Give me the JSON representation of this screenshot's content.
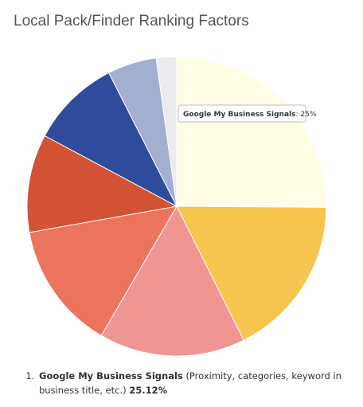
{
  "chart_data": {
    "type": "pie",
    "title": "Local Pack/Finder Ranking Factors",
    "categories": [
      "Google My Business Signals",
      null,
      null,
      null,
      null,
      null,
      null,
      null
    ],
    "values": [
      25.12,
      17.5,
      15.8,
      13.8,
      10.6,
      9.7,
      5.3,
      2.2
    ],
    "value_labels": [
      "25.12%",
      null,
      null,
      null,
      null,
      null,
      null,
      null
    ],
    "descriptions": [
      "(Proximity, categories, keyword in business title, etc.)",
      null,
      null,
      null,
      null,
      null,
      null,
      null
    ],
    "colors": [
      "#fffde6",
      "#f6c44f",
      "#ef9592",
      "#ec735c",
      "#d35334",
      "#2f4c9c",
      "#a3afd1",
      "#ebebef"
    ],
    "tooltip_text": ": 25%"
  }
}
